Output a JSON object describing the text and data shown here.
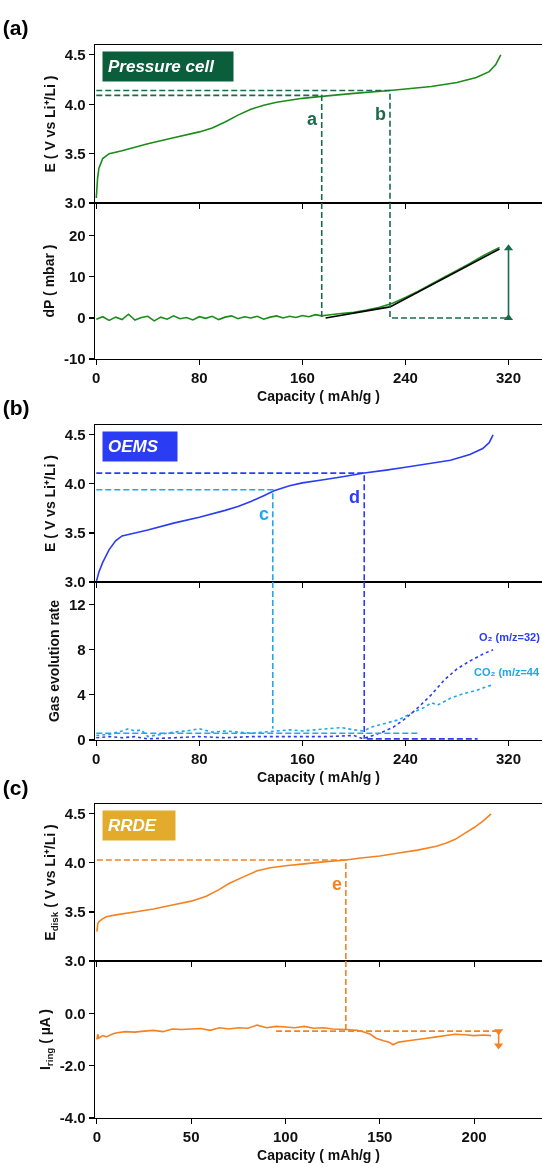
{
  "chart_data": [
    {
      "type": "line",
      "title": "(a)",
      "ylabel": "E ( V vs Li⁺/Li )",
      "xlim": [
        -1,
        346
      ],
      "xticks": [
        0,
        80,
        160,
        240,
        320
      ],
      "ylim": [
        3.0,
        4.6
      ],
      "yticks": [
        {
          "value": 3.0,
          "label": "3.0"
        },
        3.5,
        {
          "value": 4.0,
          "label": "4.0"
        },
        4.5
      ],
      "tick_labels": "y",
      "grid": false,
      "legend": false,
      "annotations": [
        "Pressure cell",
        {
          "text": "a",
          "x": 175,
          "y": 4.09
        },
        {
          "text": "b",
          "x": 228,
          "y": 4.14
        }
      ],
      "series": [
        {
          "color": "#1a8c1a",
          "line_style": "solid",
          "x": [
            0,
            1,
            2,
            5,
            10,
            20,
            40,
            60,
            80,
            90,
            100,
            110,
            120,
            130,
            140,
            160,
            175,
            200,
            228,
            260,
            280,
            295,
            305,
            310,
            314
          ],
          "values": [
            3.05,
            3.25,
            3.35,
            3.45,
            3.5,
            3.53,
            3.6,
            3.66,
            3.72,
            3.76,
            3.82,
            3.89,
            3.95,
            3.99,
            4.02,
            4.06,
            4.08,
            4.11,
            4.14,
            4.18,
            4.22,
            4.27,
            4.33,
            4.4,
            4.5
          ]
        },
        {
          "color": "#1b6b4b",
          "line_style": "dashed",
          "x": [
            0,
            175,
            175
          ],
          "values": [
            4.09,
            4.09,
            3.0
          ]
        },
        {
          "color": "#1b6b4b",
          "line_style": "dashed",
          "x": [
            0,
            228,
            228
          ],
          "values": [
            4.14,
            4.14,
            3.0
          ]
        }
      ]
    },
    {
      "type": "line",
      "xlabel": "Capacity ( mAh/g )",
      "ylabel": "dP ( mbar )",
      "xlim": [
        -1,
        346
      ],
      "xticks": [
        0,
        80,
        160,
        240,
        320
      ],
      "ylim": [
        -10,
        28
      ],
      "yticks": [
        -10,
        0,
        10,
        20
      ],
      "grid": false,
      "legend": false,
      "series": [
        {
          "color": "#1a8c1a",
          "line_style": "solid",
          "x": [
            0,
            5,
            10,
            15,
            20,
            25,
            30,
            35,
            40,
            45,
            50,
            55,
            60,
            65,
            70,
            75,
            80,
            85,
            90,
            95,
            100,
            105,
            110,
            115,
            120,
            125,
            130,
            135,
            140,
            145,
            150,
            155,
            160,
            165,
            170,
            175,
            180,
            190,
            200,
            210,
            220,
            230,
            240,
            250,
            260,
            270,
            280,
            290,
            300,
            308,
            313
          ],
          "values": [
            -0.3,
            0.3,
            -0.6,
            0.2,
            -0.4,
            0.9,
            -0.5,
            0.1,
            0.4,
            -0.7,
            0.2,
            -0.3,
            0.5,
            -0.2,
            0.1,
            -0.5,
            0.3,
            -0.1,
            0.4,
            -0.4,
            0.2,
            0.5,
            -0.2,
            0.3,
            0.0,
            0.4,
            -0.3,
            0.2,
            0.5,
            0.0,
            0.4,
            0.1,
            0.6,
            0.3,
            0.8,
            0.5,
            0.7,
            1.1,
            1.4,
            1.9,
            2.6,
            3.6,
            5.0,
            6.5,
            8.2,
            9.9,
            11.6,
            13.3,
            15.1,
            16.4,
            17.2
          ]
        },
        {
          "color": "#000000",
          "line_style": "solid",
          "x": [
            178,
            228,
            313
          ],
          "values": [
            0,
            2.7,
            16.8
          ]
        },
        {
          "color": "#1b6b4b",
          "line_style": "dashed",
          "x": [
            175,
            175
          ],
          "values": [
            28,
            0
          ]
        },
        {
          "color": "#1b6b4b",
          "line_style": "dashed",
          "x": [
            228,
            228,
            320
          ],
          "values": [
            28,
            0,
            0
          ]
        },
        {
          "color": "#1b6b4b",
          "line_style": "solid",
          "marker": "triangle",
          "x": [
            320,
            320
          ],
          "values": [
            0,
            17
          ]
        }
      ]
    },
    {
      "type": "line",
      "title": "(b)",
      "ylabel": "E ( V vs Li⁺/Li )",
      "xlim": [
        -1,
        346
      ],
      "xticks": [
        0,
        80,
        160,
        240,
        320
      ],
      "ylim": [
        3.0,
        4.6
      ],
      "yticks": [
        {
          "value": 3.0,
          "label": "3.0"
        },
        3.5,
        {
          "value": 4.0,
          "label": "4.0"
        },
        4.5
      ],
      "tick_labels": "y",
      "grid": false,
      "legend": false,
      "annotations": [
        "OEMS",
        {
          "text": "c",
          "x": 137,
          "y": 3.94
        },
        {
          "text": "d",
          "x": 208,
          "y": 4.11
        }
      ],
      "series": [
        {
          "color": "#2b3cf5",
          "line_style": "solid",
          "x": [
            0,
            2,
            5,
            10,
            15,
            20,
            30,
            40,
            60,
            80,
            100,
            110,
            120,
            130,
            138,
            150,
            160,
            175,
            190,
            208,
            225,
            240,
            260,
            275,
            290,
            300,
            305,
            308
          ],
          "values": [
            3.0,
            3.1,
            3.2,
            3.33,
            3.42,
            3.47,
            3.5,
            3.53,
            3.6,
            3.66,
            3.73,
            3.77,
            3.82,
            3.88,
            3.93,
            3.98,
            4.01,
            4.04,
            4.07,
            4.11,
            4.14,
            4.17,
            4.21,
            4.24,
            4.3,
            4.36,
            4.42,
            4.5
          ]
        },
        {
          "color": "#1ea7ec",
          "line_style": "dashed",
          "x": [
            0,
            137,
            137
          ],
          "values": [
            3.94,
            3.94,
            3.0
          ]
        },
        {
          "color": "#2b3cf5",
          "line_style": "dashed",
          "x": [
            0,
            208,
            208
          ],
          "values": [
            4.11,
            4.11,
            3.0
          ]
        }
      ]
    },
    {
      "type": "line",
      "xlabel": "Capacity ( mAh/g )",
      "ylabel": "Gas evolution rate",
      "xlim": [
        -1,
        346
      ],
      "xticks": [
        0,
        80,
        160,
        240,
        320
      ],
      "ylim": [
        0,
        14
      ],
      "yticks": [
        0,
        4,
        8,
        12
      ],
      "grid": false,
      "legend": false,
      "series": [
        {
          "name": "CO₂ (m/z=44",
          "color": "#1ea7ec",
          "line_style": "dotted",
          "x": [
            0,
            10,
            20,
            25,
            30,
            35,
            40,
            50,
            60,
            70,
            80,
            90,
            100,
            120,
            140,
            150,
            160,
            170,
            180,
            190,
            200,
            207,
            215,
            225,
            235,
            245,
            255,
            260,
            265,
            275,
            285,
            295,
            300,
            308
          ],
          "values": [
            0.4,
            0.5,
            0.8,
            1.0,
            0.8,
            0.9,
            0.3,
            0.5,
            0.7,
            0.8,
            1.0,
            0.7,
            0.8,
            0.6,
            0.8,
            0.9,
            0.8,
            0.9,
            1.0,
            1.1,
            0.9,
            0.8,
            1.2,
            1.5,
            1.8,
            2.4,
            2.9,
            3.3,
            3.1,
            3.7,
            4.1,
            4.4,
            4.6,
            4.9
          ]
        },
        {
          "name": "O₂ (m/z=32)",
          "color": "#2b3cf5",
          "line_style": "dotted",
          "x": [
            0,
            10,
            20,
            30,
            40,
            60,
            80,
            100,
            120,
            140,
            160,
            180,
            200,
            207,
            212,
            220,
            230,
            240,
            250,
            260,
            270,
            280,
            290,
            300,
            308
          ],
          "values": [
            0.2,
            0.3,
            0.2,
            0.3,
            0.1,
            0.2,
            0.3,
            0.2,
            0.3,
            0.3,
            0.3,
            0.3,
            0.4,
            0.1,
            0.3,
            0.6,
            1.1,
            1.9,
            2.9,
            4.0,
            5.3,
            6.3,
            7.0,
            7.6,
            8.0
          ]
        },
        {
          "color": "#1ea7ec",
          "line_style": "dashed",
          "x": [
            137,
            137
          ],
          "values": [
            14,
            1.0
          ]
        },
        {
          "color": "#2b3cf5",
          "line_style": "dashed",
          "x": [
            208,
            208
          ],
          "values": [
            14,
            0.1
          ]
        },
        {
          "color": "#1ea7ec",
          "line_style": "dashed",
          "x": [
            0,
            251
          ],
          "values": [
            0.6,
            0.6
          ]
        },
        {
          "color": "#2b3cf5",
          "line_style": "dashed",
          "x": [
            210,
            296
          ],
          "values": [
            0.1,
            0.1
          ]
        }
      ]
    },
    {
      "type": "line",
      "title": "(c)",
      "ylabel": "E$_{disk}$ ( V vs Li⁺/Li )",
      "xlim": [
        -1,
        236
      ],
      "xticks": [
        0,
        50,
        100,
        150,
        200
      ],
      "ylim": [
        3.0,
        4.6
      ],
      "yticks": [
        {
          "value": 3.0,
          "label": "3.0"
        },
        3.5,
        {
          "value": 4.0,
          "label": "4.0"
        },
        4.5
      ],
      "tick_labels": "y",
      "grid": false,
      "legend": false,
      "annotations": [
        "RRDE",
        {
          "text": "e",
          "x": 132,
          "y": 4.03
        }
      ],
      "series": [
        {
          "color": "#f58220",
          "line_style": "solid",
          "x": [
            0,
            0.5,
            1,
            3,
            5,
            10,
            20,
            30,
            40,
            50,
            58,
            65,
            70,
            78,
            85,
            92,
            100,
            110,
            120,
            132,
            140,
            150,
            160,
            170,
            180,
            185,
            190,
            195,
            200,
            205,
            209
          ],
          "values": [
            3.3,
            3.38,
            3.4,
            3.43,
            3.45,
            3.47,
            3.5,
            3.53,
            3.57,
            3.61,
            3.66,
            3.73,
            3.79,
            3.86,
            3.92,
            3.95,
            3.97,
            3.99,
            4.01,
            4.03,
            4.05,
            4.07,
            4.1,
            4.13,
            4.17,
            4.2,
            4.24,
            4.3,
            4.36,
            4.43,
            4.5
          ]
        },
        {
          "color": "#f58220",
          "line_style": "dashed",
          "x": [
            0,
            132,
            132
          ],
          "values": [
            4.03,
            4.03,
            3.0
          ]
        }
      ]
    },
    {
      "type": "line",
      "xlabel": "Capacity ( mAh/g )",
      "ylabel": "I$_{ring}$ ( µA )",
      "xlim": [
        -1,
        236
      ],
      "xticks": [
        0,
        50,
        100,
        150,
        200
      ],
      "ylim": [
        -4,
        2
      ],
      "yticks": [
        {
          "value": -4,
          "label": "-4.0"
        },
        {
          "value": -2,
          "label": "-2.0"
        },
        {
          "value": 0,
          "label": "0.0"
        },
        {
          "value": 2,
          "label": null
        }
      ],
      "grid": false,
      "legend": false,
      "series": [
        {
          "color": "#f58220",
          "line_style": "solid",
          "x": [
            0,
            0.5,
            1,
            3,
            5,
            8,
            10,
            15,
            20,
            25,
            30,
            35,
            40,
            45,
            50,
            55,
            60,
            65,
            70,
            75,
            80,
            85,
            90,
            95,
            100,
            105,
            110,
            115,
            120,
            125,
            132,
            138,
            142,
            145,
            148,
            152,
            155,
            157,
            160,
            165,
            170,
            175,
            180,
            185,
            190,
            195,
            200,
            205,
            209
          ],
          "values": [
            -1.0,
            -0.8,
            -0.95,
            -0.85,
            -0.9,
            -0.8,
            -0.75,
            -0.7,
            -0.72,
            -0.68,
            -0.65,
            -0.7,
            -0.6,
            -0.62,
            -0.6,
            -0.58,
            -0.65,
            -0.55,
            -0.6,
            -0.55,
            -0.57,
            -0.45,
            -0.55,
            -0.5,
            -0.52,
            -0.55,
            -0.5,
            -0.57,
            -0.55,
            -0.6,
            -0.62,
            -0.65,
            -0.72,
            -0.8,
            -0.95,
            -1.05,
            -1.1,
            -1.2,
            -1.1,
            -1.05,
            -1.0,
            -0.95,
            -0.9,
            -0.85,
            -0.8,
            -0.82,
            -0.85,
            -0.83,
            -0.85
          ]
        },
        {
          "color": "#f58220",
          "line_style": "dashed",
          "x": [
            132,
            132
          ],
          "values": [
            2,
            -0.64
          ]
        },
        {
          "color": "#f58220",
          "line_style": "dashed",
          "x": [
            95,
            212
          ],
          "values": [
            -0.68,
            -0.68
          ]
        },
        {
          "color": "#f58220",
          "line_style": "solid",
          "marker": "triangle",
          "x": [
            213,
            213
          ],
          "values": [
            -0.68,
            -1.23
          ]
        }
      ]
    }
  ]
}
